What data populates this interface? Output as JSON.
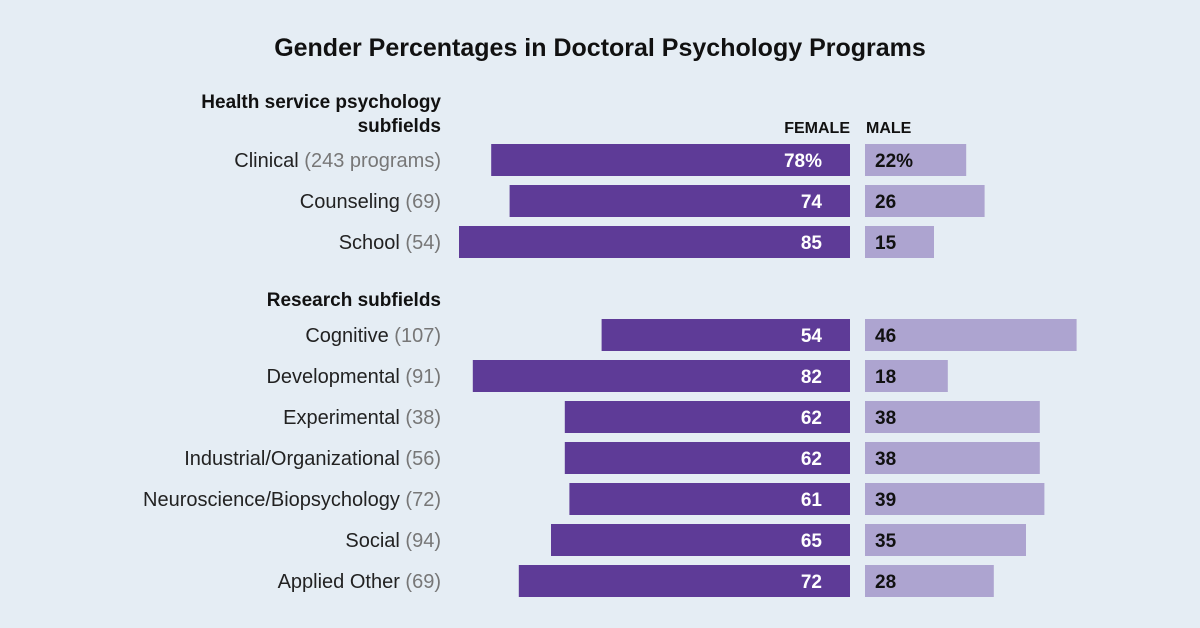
{
  "chart_data": {
    "type": "bar",
    "title": "Gender Percentages in Doctoral Psychology Programs",
    "column_headers": {
      "female": "FEMALE",
      "male": "MALE"
    },
    "colors": {
      "background": "#e5edf4",
      "female": "#5e3b97",
      "male": "#ada4d0"
    },
    "xlim": [
      0,
      100
    ],
    "groups": [
      {
        "label_lines": [
          "Health service psychology",
          "subfields"
        ],
        "rows": [
          {
            "name": "Clinical",
            "count": "(243 programs)",
            "female": 78,
            "male": 22,
            "female_label": "78%",
            "male_label": "22%"
          },
          {
            "name": "Counseling",
            "count": "(69)",
            "female": 74,
            "male": 26,
            "female_label": "74",
            "male_label": "26"
          },
          {
            "name": "School",
            "count": "(54)",
            "female": 85,
            "male": 15,
            "female_label": "85",
            "male_label": "15"
          }
        ]
      },
      {
        "label_lines": [
          "Research subfields"
        ],
        "rows": [
          {
            "name": "Cognitive",
            "count": "(107)",
            "female": 54,
            "male": 46,
            "female_label": "54",
            "male_label": "46"
          },
          {
            "name": "Developmental",
            "count": "(91)",
            "female": 82,
            "male": 18,
            "female_label": "82",
            "male_label": "18"
          },
          {
            "name": "Experimental",
            "count": "(38)",
            "female": 62,
            "male": 38,
            "female_label": "62",
            "male_label": "38"
          },
          {
            "name": "Industrial/Organizational",
            "count": "(56)",
            "female": 62,
            "male": 38,
            "female_label": "62",
            "male_label": "38"
          },
          {
            "name": "Neuroscience/Biopsychology",
            "count": "(72)",
            "female": 61,
            "male": 39,
            "female_label": "61",
            "male_label": "39"
          },
          {
            "name": "Social",
            "count": "(94)",
            "female": 65,
            "male": 35,
            "female_label": "65",
            "male_label": "35"
          },
          {
            "name": "Applied Other",
            "count": "(69)",
            "female": 72,
            "male": 28,
            "female_label": "72",
            "male_label": "28"
          }
        ]
      }
    ]
  }
}
